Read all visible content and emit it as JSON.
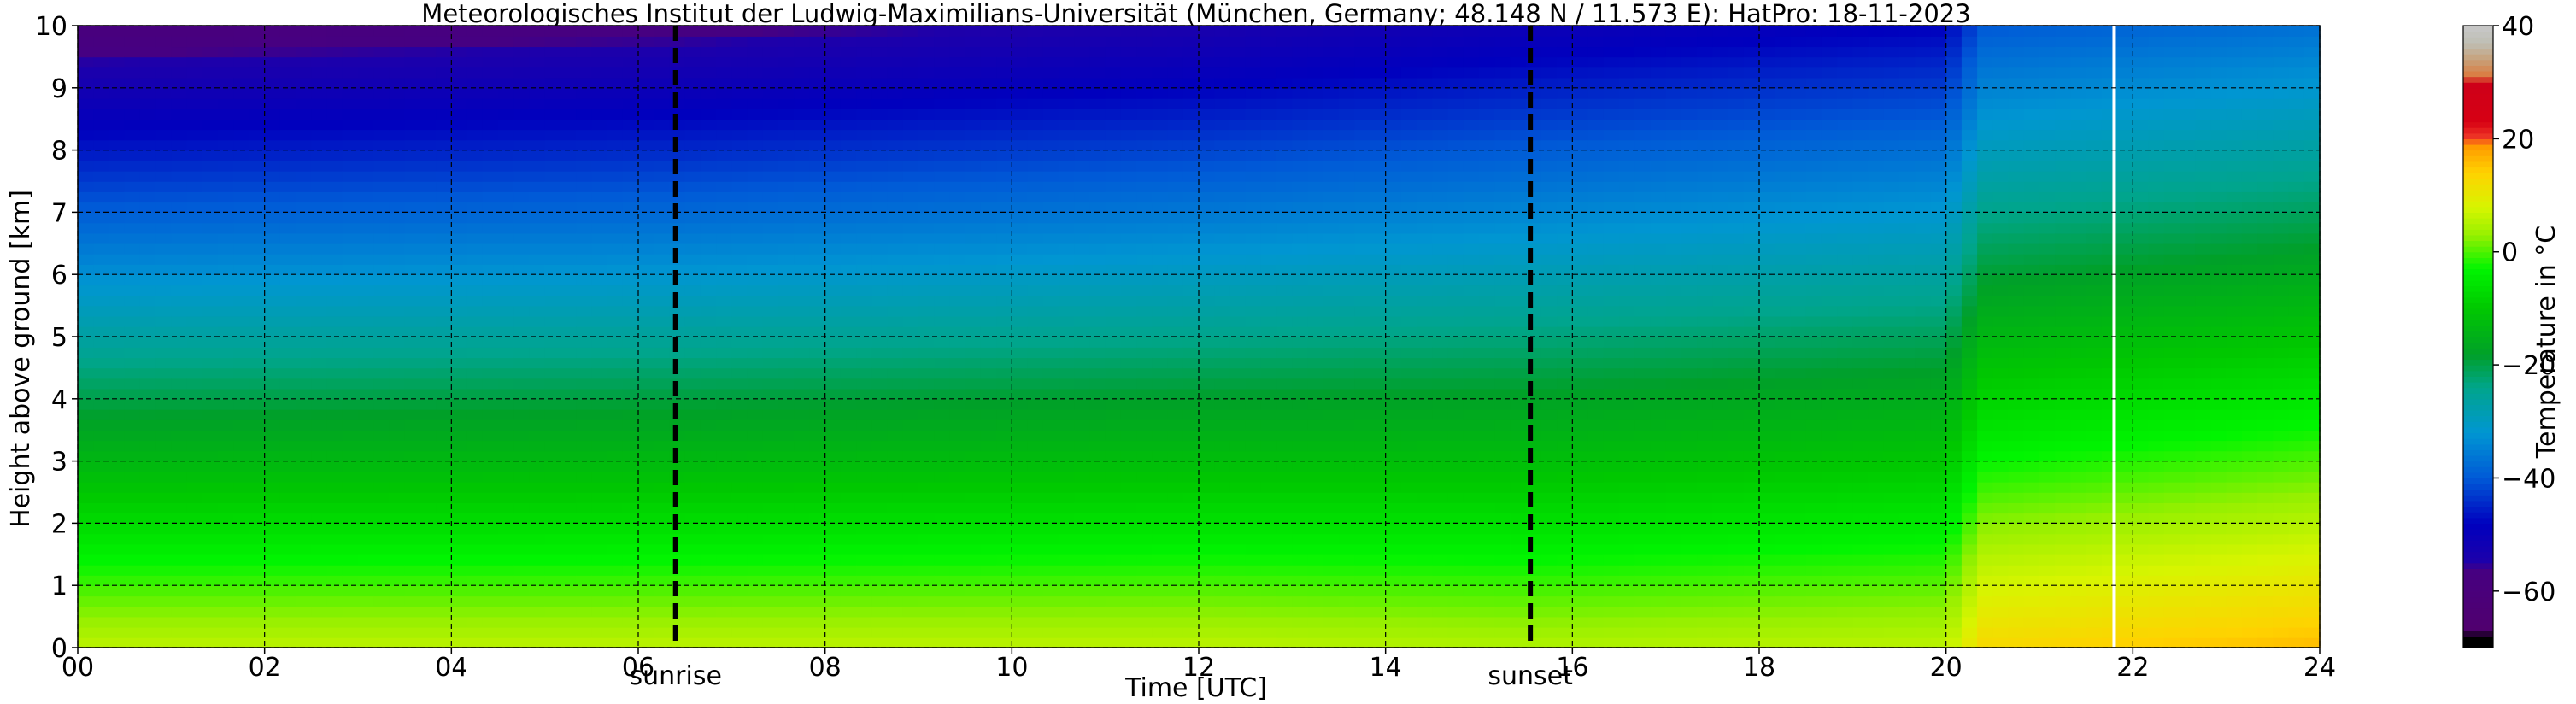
{
  "chart_data": {
    "type": "heatmap",
    "title": "Meteorologisches Institut der Ludwig-Maximilians-Universität (München, Germany; 48.148 N / 11.573 E):    HatPro: 18-11-2023",
    "xlabel": "Time [UTC]",
    "ylabel": "Height above ground [km]",
    "x_unit": "hours UTC",
    "y_unit": "km",
    "xlim": [
      0,
      24
    ],
    "ylim": [
      0,
      10
    ],
    "x_tick_labels": [
      "00",
      "02",
      "04",
      "06",
      "08",
      "10",
      "12",
      "14",
      "16",
      "18",
      "20",
      "22",
      "24"
    ],
    "y_tick_labels": [
      "0",
      "1",
      "2",
      "3",
      "4",
      "5",
      "6",
      "7",
      "8",
      "9",
      "10"
    ],
    "grid": true,
    "vertical_markers": [
      {
        "time": 6.4,
        "label": "sunrise"
      },
      {
        "time": 15.55,
        "label": "sunset"
      }
    ],
    "data_gap_time": 21.8,
    "colorbar": {
      "label": "Temperature in °C",
      "range": [
        -70,
        40
      ],
      "tick_labels": [
        "−60",
        "−40",
        "−20",
        "0",
        "20",
        "40"
      ],
      "tick_values": [
        -60,
        -40,
        -20,
        0,
        20,
        40
      ]
    },
    "temperature_profiles": [
      {
        "time": 0,
        "surface_temp": 6,
        "lapse_rate_c_per_km": 6.5
      },
      {
        "time": 6.4,
        "surface_temp": 6,
        "lapse_rate_c_per_km": 6.3
      },
      {
        "time": 12,
        "surface_temp": 6,
        "lapse_rate_c_per_km": 6.0
      },
      {
        "time": 15.5,
        "surface_temp": 5,
        "lapse_rate_c_per_km": 5.6
      },
      {
        "time": 20,
        "surface_temp": 6,
        "lapse_rate_c_per_km": 5.4
      },
      {
        "time": 20.4,
        "surface_temp": 13,
        "lapse_rate_c_per_km": 5.3
      },
      {
        "time": 24,
        "surface_temp": 16,
        "lapse_rate_c_per_km": 5.3
      }
    ]
  }
}
